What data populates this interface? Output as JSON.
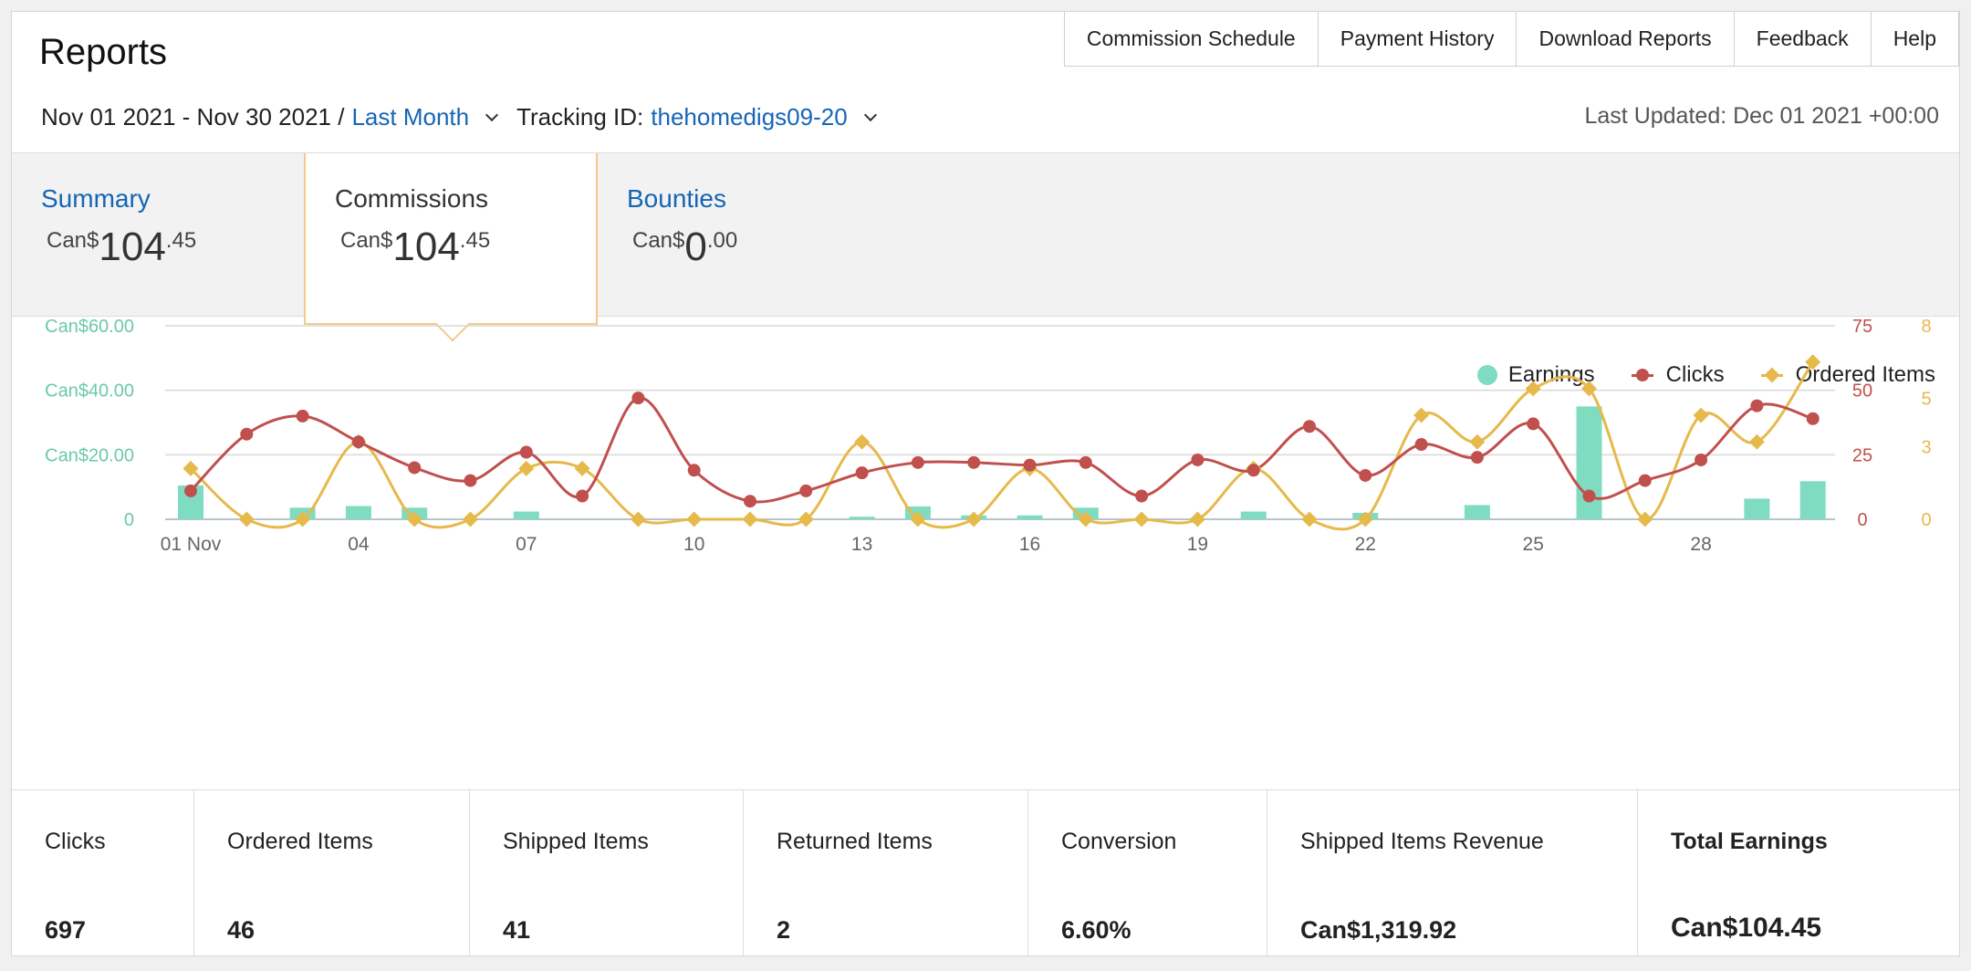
{
  "title": "Reports",
  "top_nav": [
    "Commission Schedule",
    "Payment History",
    "Download Reports",
    "Feedback",
    "Help"
  ],
  "date_range": {
    "text": "Nov 01 2021 - Nov 30 2021 /",
    "preset": "Last Month",
    "tracking_label": "Tracking ID:",
    "tracking_id": "thehomedigs09-20"
  },
  "last_updated": "Last Updated: Dec 01 2021 +00:00",
  "tabs": [
    {
      "label": "Summary",
      "currency": "Can$",
      "whole": "104",
      "cents": ".45"
    },
    {
      "label": "Commissions",
      "currency": "Can$",
      "whole": "104",
      "cents": ".45"
    },
    {
      "label": "Bounties",
      "currency": "Can$",
      "whole": "0",
      "cents": ".00"
    }
  ],
  "colors": {
    "earnings": "#7fdcc1",
    "clicks": "#c0504d",
    "ordered": "#e6b94b",
    "accent": "#1665b5"
  },
  "chart_data": {
    "type": "bar+line",
    "legend": [
      "Earnings",
      "Clicks",
      "Ordered Items"
    ],
    "legend_position": "top-right",
    "x_tick_labels": [
      "01 Nov",
      "04",
      "07",
      "10",
      "13",
      "16",
      "19",
      "22",
      "25",
      "28"
    ],
    "x_tick_days": [
      1,
      4,
      7,
      10,
      13,
      16,
      19,
      22,
      25,
      28
    ],
    "days": [
      1,
      2,
      3,
      4,
      5,
      6,
      7,
      8,
      9,
      10,
      11,
      12,
      13,
      14,
      15,
      16,
      17,
      18,
      19,
      20,
      21,
      22,
      23,
      24,
      25,
      26,
      27,
      28,
      29,
      30
    ],
    "y_left": {
      "ticks": [
        "0",
        "Can$20.00",
        "Can$40.00",
        "Can$60.00"
      ],
      "values": [
        0,
        20,
        40,
        60
      ],
      "range": [
        0,
        60
      ]
    },
    "y_right_clicks": {
      "ticks": [
        "0",
        "25",
        "50",
        "75"
      ],
      "values": [
        0,
        25,
        50,
        75
      ],
      "range": [
        0,
        75
      ]
    },
    "y_right_items": {
      "ticks": [
        "0",
        "3",
        "5",
        "8"
      ],
      "values": [
        0,
        3,
        5,
        8
      ],
      "range": [
        0,
        8
      ]
    },
    "series": [
      {
        "name": "Earnings",
        "type": "bar",
        "axis": "left",
        "values": [
          10.5,
          0,
          3.6,
          4.1,
          3.6,
          0,
          2.4,
          0,
          0,
          0,
          0,
          0,
          0.8,
          4.0,
          1.2,
          1.2,
          3.6,
          0,
          0,
          2.4,
          0,
          2.0,
          0,
          4.4,
          0,
          35.0,
          0,
          0,
          6.4,
          11.8
        ]
      },
      {
        "name": "Clicks",
        "type": "line",
        "axis": "right_clicks",
        "values": [
          11,
          33,
          40,
          30,
          20,
          15,
          26,
          9,
          47,
          19,
          7,
          11,
          18,
          22,
          22,
          21,
          22,
          9,
          23,
          19,
          36,
          17,
          29,
          24,
          37,
          9,
          15,
          23,
          44,
          39
        ]
      },
      {
        "name": "Ordered Items",
        "type": "line",
        "axis": "right_items",
        "values": [
          2.1,
          0,
          0,
          3.2,
          0,
          0,
          2.1,
          2.1,
          0,
          0,
          0,
          0,
          3.2,
          0,
          0,
          2.1,
          0,
          0,
          0,
          2.1,
          0,
          0,
          4.3,
          3.2,
          5.4,
          5.4,
          0,
          4.3,
          3.2,
          6.5
        ]
      }
    ]
  },
  "stats": [
    {
      "label": "Clicks",
      "value": "697"
    },
    {
      "label": "Ordered Items",
      "value": "46"
    },
    {
      "label": "Shipped Items",
      "value": "41"
    },
    {
      "label": "Returned Items",
      "value": "2"
    },
    {
      "label": "Conversion",
      "value": "6.60%"
    },
    {
      "label": "Shipped Items Revenue",
      "value": "Can$1,319.92"
    },
    {
      "label": "Total Earnings",
      "value": "Can$104.45"
    }
  ]
}
